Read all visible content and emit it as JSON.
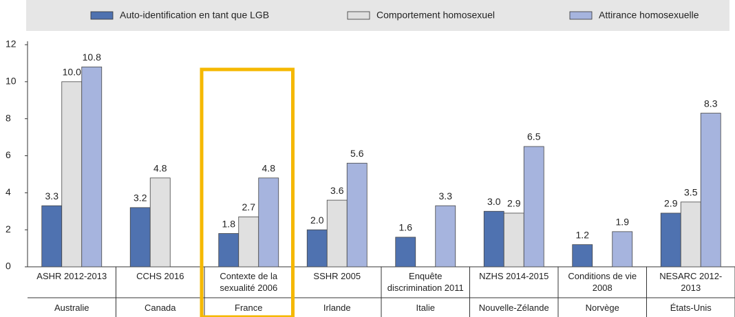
{
  "chart_data": {
    "type": "bar",
    "categories": [
      "ASHR 2012-2013",
      "CCHS 2016",
      "Contexte de la\nsexualité 2006",
      "SSHR 2005",
      "Enquête\ndiscrimination 2011",
      "NZHS 2014-2015",
      "Conditions de vie\n2008",
      "NESARC 2012-\n2013"
    ],
    "countries": [
      "Australie",
      "Canada",
      "France",
      "Irlande",
      "Italie",
      "Nouvelle-Zélande",
      "Norvège",
      "États-Unis"
    ],
    "series": [
      {
        "name": "Auto-identification en tant que LGB",
        "color": "#4f72b0",
        "values": [
          3.3,
          3.2,
          1.8,
          2.0,
          1.6,
          3.0,
          1.2,
          2.9
        ],
        "value_labels": [
          "3.3",
          "3.2",
          "1.8",
          "2.0",
          "1.6",
          "3.0",
          "1.2",
          "2.9"
        ]
      },
      {
        "name": "Comportement homosexuel",
        "color": "#e0e0e0",
        "values": [
          10,
          4.8,
          2.7,
          3.6,
          null,
          2.9,
          null,
          3.5
        ],
        "value_labels": [
          "10.0",
          "4.8",
          "2.7",
          "3.6",
          null,
          "2.9",
          null,
          "3.5"
        ]
      },
      {
        "name": "Attirance homosexuelle",
        "color": "#a6b4de",
        "values": [
          10.8,
          null,
          4.8,
          5.6,
          3.3,
          6.5,
          1.9,
          8.3
        ],
        "value_labels": [
          "10.8",
          null,
          "4.8",
          "5.6",
          "3.3",
          "6.5",
          "1.9",
          "8.3"
        ]
      }
    ],
    "ylim": [
      0,
      12
    ],
    "yticks": [
      0,
      2,
      4,
      6,
      8,
      10,
      12
    ],
    "grid": false
  }
}
